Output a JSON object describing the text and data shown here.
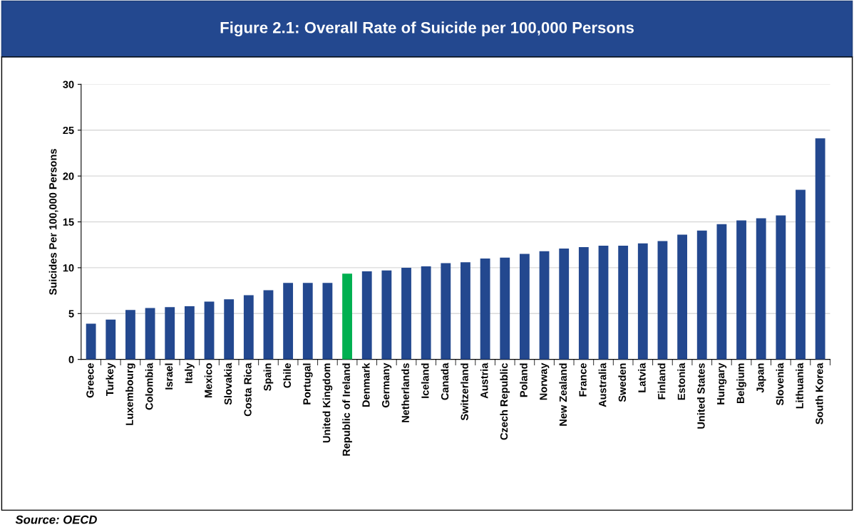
{
  "chart_data": {
    "type": "bar",
    "title": "Figure 2.1: Overall Rate of Suicide per 100,000 Persons",
    "ylabel": "Suicides Per 100,000 Persons",
    "categories": [
      "Greece",
      "Turkey",
      "Luxembourg",
      "Colombia",
      "Israel",
      "Italy",
      "Mexico",
      "Slovakia",
      "Costa Rica",
      "Spain",
      "Chile",
      "Portugal",
      "United Kingdom",
      "Republic of Ireland",
      "Denmark",
      "Germany",
      "Netherlands",
      "Iceland",
      "Canada",
      "Switzerland",
      "Austria",
      "Czech Republic",
      "Poland",
      "Norway",
      "New Zealand",
      "France",
      "Australia",
      "Sweden",
      "Latvia",
      "Finland",
      "Estonia",
      "United States",
      "Hungary",
      "Belgium",
      "Japan",
      "Slovenia",
      "Lithuania",
      "South Korea"
    ],
    "values": [
      3.9,
      4.35,
      5.4,
      5.6,
      5.7,
      5.8,
      6.3,
      6.55,
      7.0,
      7.55,
      8.35,
      8.35,
      8.35,
      9.35,
      9.6,
      9.7,
      10.0,
      10.15,
      10.5,
      10.6,
      11.0,
      11.1,
      11.5,
      11.8,
      12.1,
      12.25,
      12.4,
      12.4,
      12.65,
      12.9,
      13.6,
      14.05,
      14.75,
      15.15,
      15.4,
      15.7,
      18.5,
      24.1
    ],
    "colors": [
      "#23488f",
      "#23488f",
      "#23488f",
      "#23488f",
      "#23488f",
      "#23488f",
      "#23488f",
      "#23488f",
      "#23488f",
      "#23488f",
      "#23488f",
      "#23488f",
      "#23488f",
      "#00b050",
      "#23488f",
      "#23488f",
      "#23488f",
      "#23488f",
      "#23488f",
      "#23488f",
      "#23488f",
      "#23488f",
      "#23488f",
      "#23488f",
      "#23488f",
      "#23488f",
      "#23488f",
      "#23488f",
      "#23488f",
      "#23488f",
      "#23488f",
      "#23488f",
      "#23488f",
      "#23488f",
      "#23488f",
      "#23488f",
      "#23488f",
      "#23488f"
    ],
    "ylim": [
      0,
      30
    ],
    "yticks": [
      0,
      5,
      10,
      15,
      20,
      25,
      30
    ],
    "grid": "y",
    "annotations": [
      "Source: OECD"
    ]
  }
}
